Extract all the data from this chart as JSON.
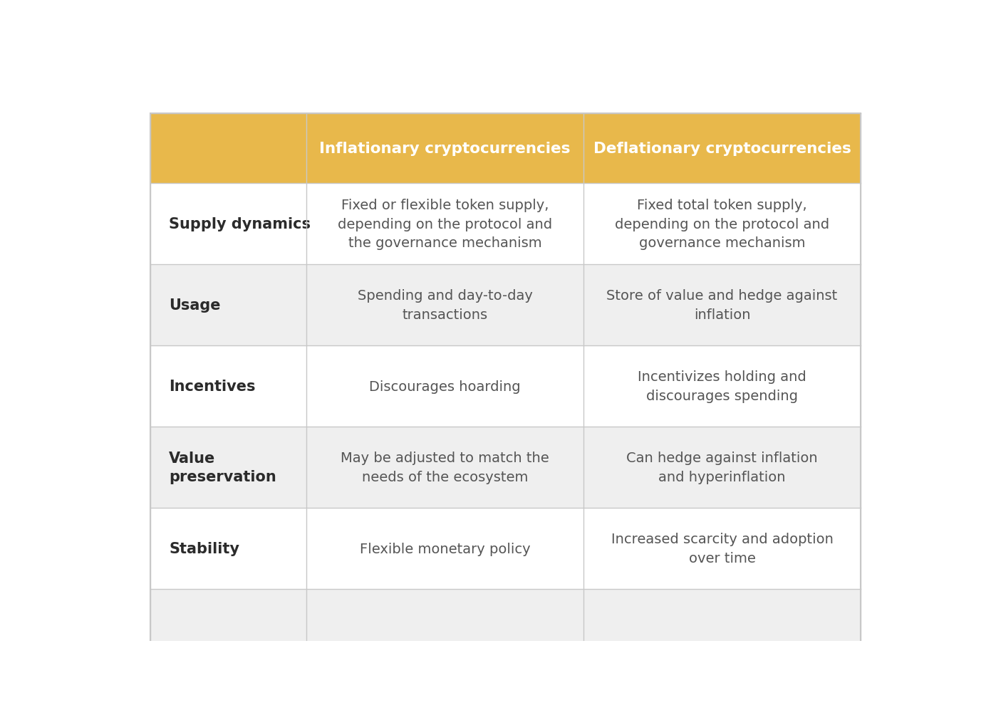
{
  "header_bg_color": "#E8B84B",
  "header_text_color": "#FFFFFF",
  "row_bg_odd": "#FFFFFF",
  "row_bg_even": "#EFEFEF",
  "label_text_color": "#2B2B2B",
  "cell_text_color": "#555555",
  "border_color": "#C8C8C8",
  "col1_label": "Inflationary cryptocurrencies",
  "col2_label": "Deflationary cryptocurrencies",
  "rows": [
    {
      "label": "Supply dynamics",
      "col1": "Fixed or flexible token supply,\ndepending on the protocol and\nthe governance mechanism",
      "col2": "Fixed total token supply,\ndepending on the protocol and\ngovernance mechanism",
      "bg": "#FFFFFF"
    },
    {
      "label": "Usage",
      "col1": "Spending and day-to-day\ntransactions",
      "col2": "Store of value and hedge against\ninflation",
      "bg": "#EFEFEF"
    },
    {
      "label": "Incentives",
      "col1": "Discourages hoarding",
      "col2": "Incentivizes holding and\ndiscourages spending",
      "bg": "#FFFFFF"
    },
    {
      "label": "Value\npreservation",
      "col1": "May be adjusted to match the\nneeds of the ecosystem",
      "col2": "Can hedge against inflation\nand hyperinflation",
      "bg": "#EFEFEF"
    },
    {
      "label": "Stability",
      "col1": "Flexible monetary policy",
      "col2": "Increased scarcity and adoption\nover time",
      "bg": "#FFFFFF"
    }
  ],
  "header_fontsize": 15.5,
  "label_fontsize": 15,
  "cell_fontsize": 14,
  "fig_width": 13.84,
  "fig_height": 10.12
}
